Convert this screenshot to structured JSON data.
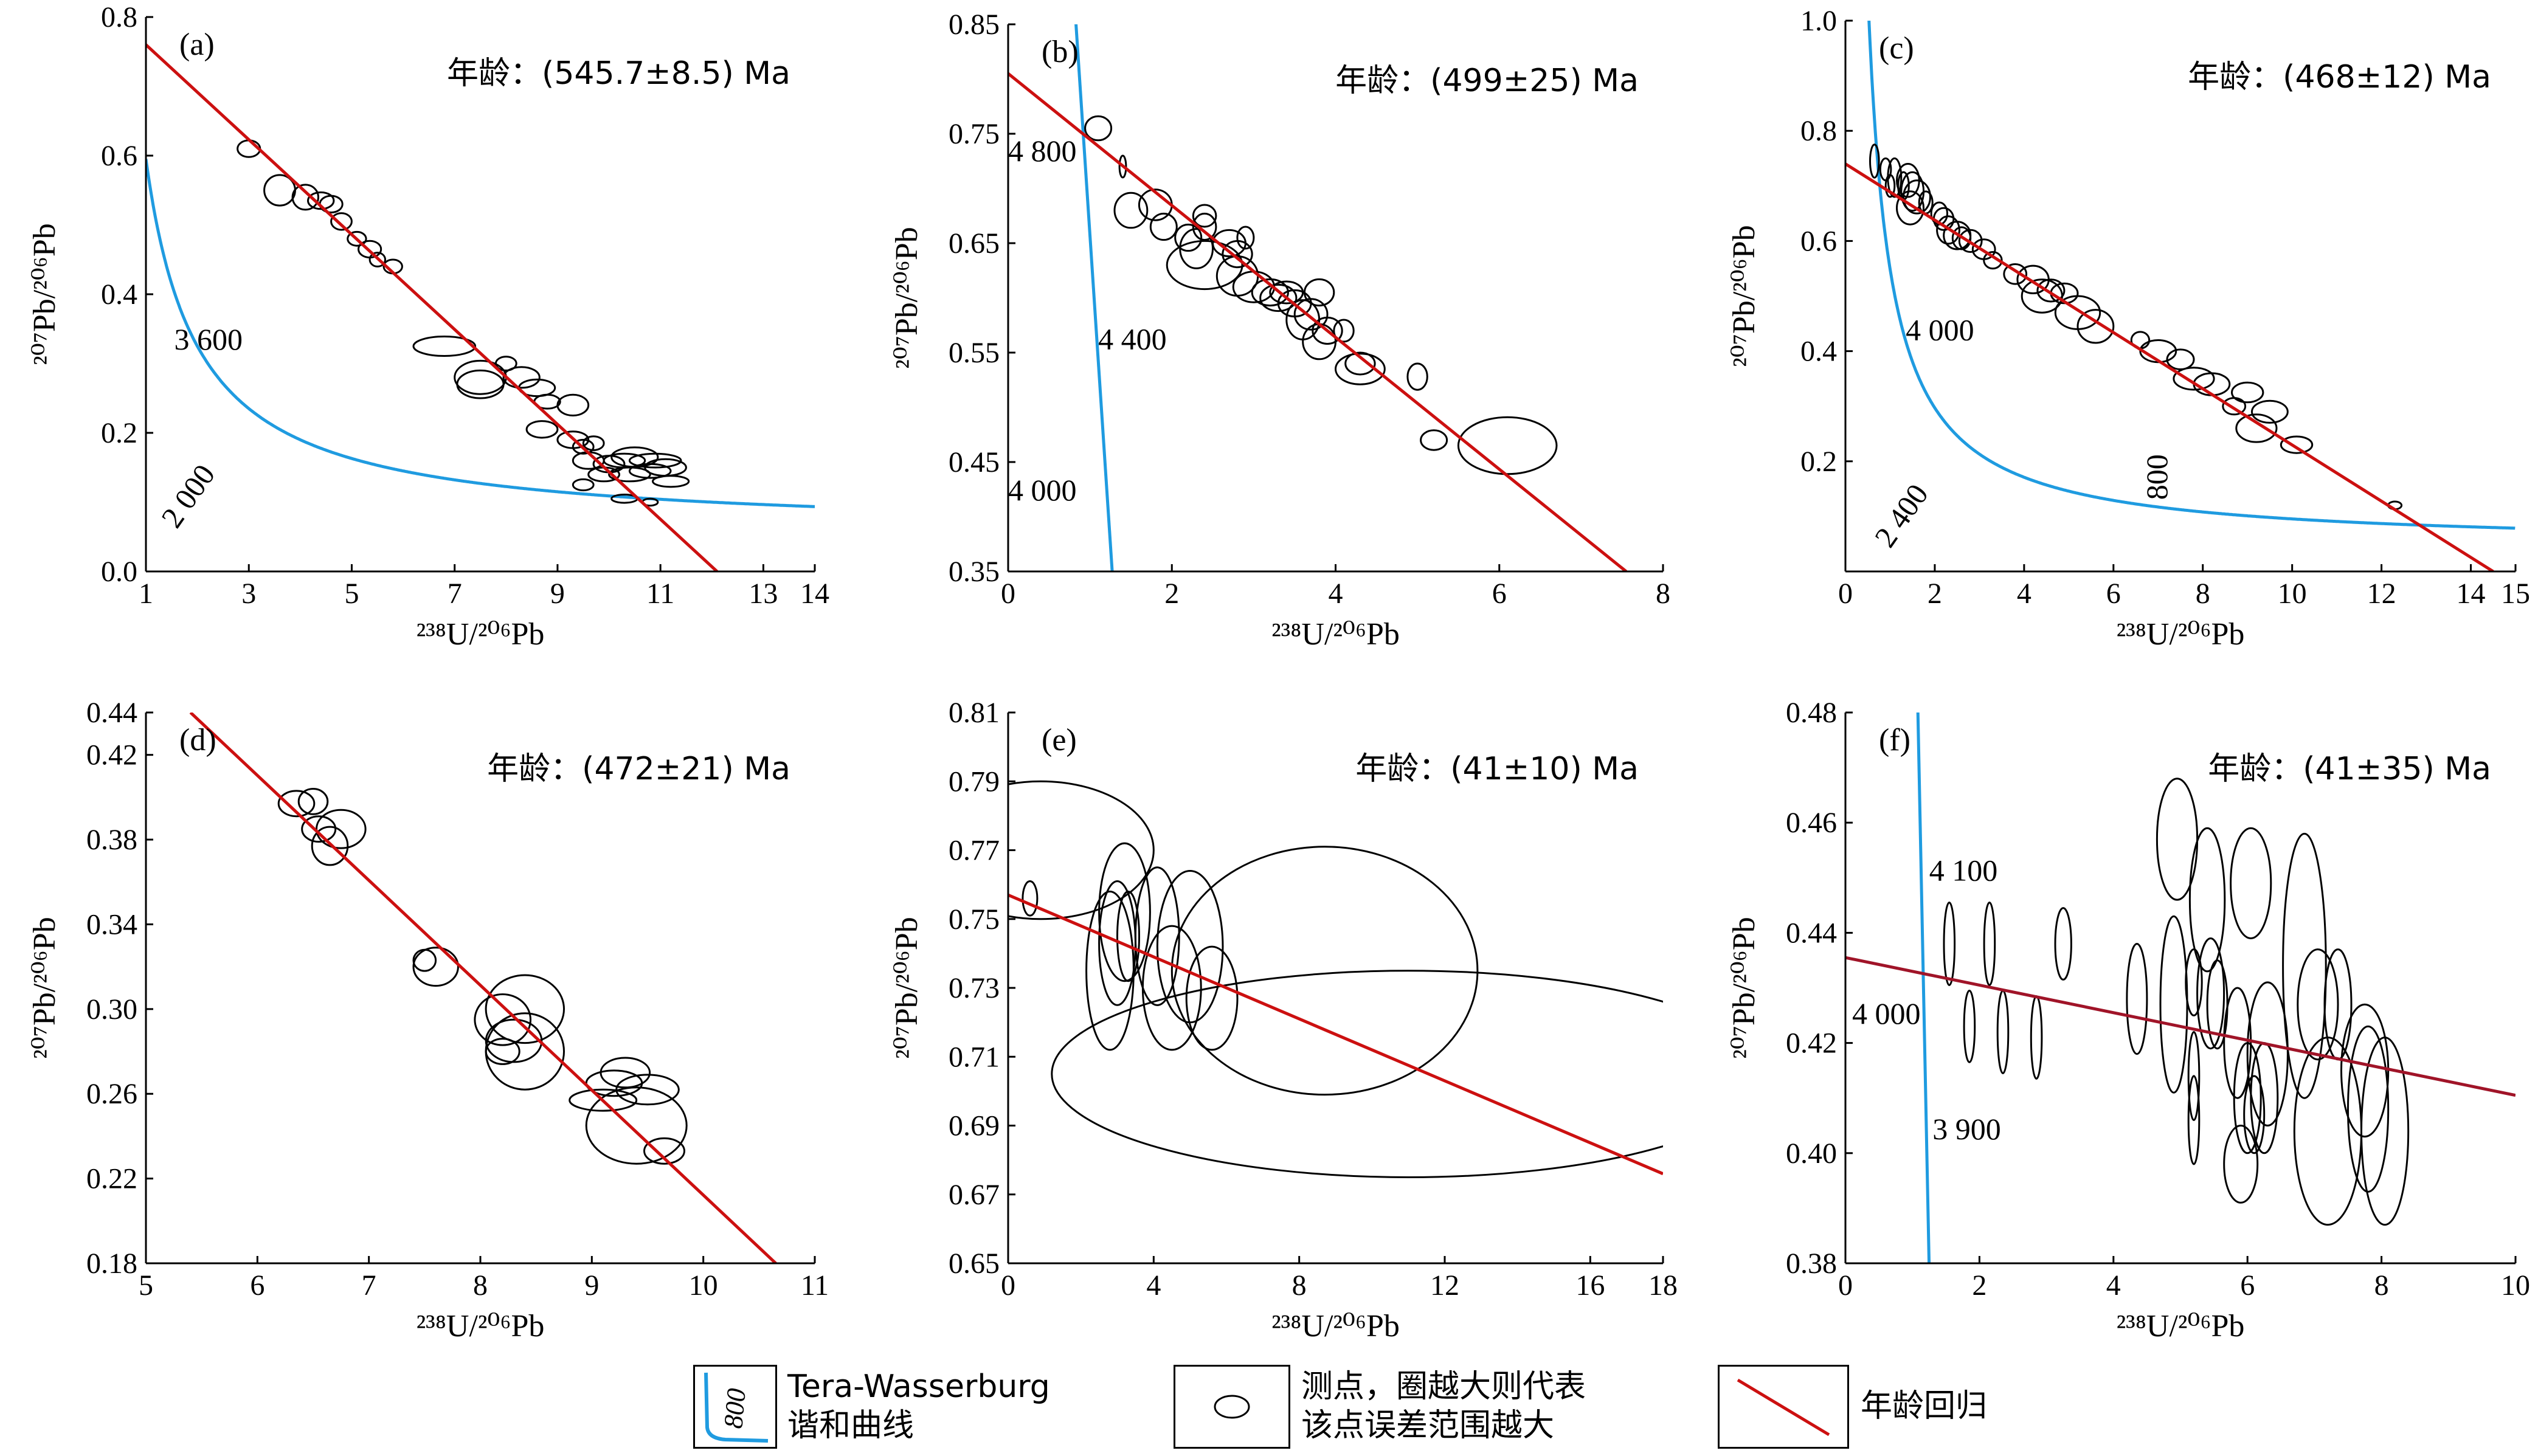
{
  "chart_data": [
    {
      "type": "scatter",
      "panel_label": "(a)",
      "age_label": "年龄：(545.7±8.5) Ma",
      "xlabel": "²³⁸U/²⁰⁶Pb",
      "ylabel": "²⁰⁷Pb/²⁰⁶Pb",
      "xlim": [
        1,
        14
      ],
      "ylim": [
        0,
        0.8
      ],
      "xticks": [
        1,
        3,
        5,
        7,
        9,
        11,
        13,
        14
      ],
      "yticks": [
        0,
        0.2,
        0.4,
        0.6,
        0.8
      ],
      "concordia_labels": [
        {
          "text": "3 600",
          "x": 1.55,
          "y": 0.32
        },
        {
          "text": "2 000",
          "x": 1.6,
          "y": 0.06
        }
      ],
      "regression": [
        [
          1,
          0.76
        ],
        [
          12.1,
          0
        ]
      ],
      "points": [
        [
          3.0,
          0.61,
          0.22,
          0.012
        ],
        [
          3.6,
          0.55,
          0.3,
          0.022
        ],
        [
          4.1,
          0.54,
          0.25,
          0.018
        ],
        [
          4.4,
          0.535,
          0.25,
          0.012
        ],
        [
          4.6,
          0.53,
          0.22,
          0.012
        ],
        [
          4.8,
          0.505,
          0.2,
          0.012
        ],
        [
          5.1,
          0.48,
          0.18,
          0.01
        ],
        [
          5.35,
          0.465,
          0.22,
          0.012
        ],
        [
          5.5,
          0.45,
          0.15,
          0.01
        ],
        [
          5.8,
          0.44,
          0.18,
          0.01
        ],
        [
          6.8,
          0.325,
          0.6,
          0.014
        ],
        [
          7.5,
          0.28,
          0.5,
          0.024
        ],
        [
          7.5,
          0.27,
          0.45,
          0.02
        ],
        [
          8.0,
          0.3,
          0.2,
          0.01
        ],
        [
          8.3,
          0.28,
          0.35,
          0.015
        ],
        [
          8.6,
          0.265,
          0.35,
          0.012
        ],
        [
          8.8,
          0.245,
          0.25,
          0.01
        ],
        [
          9.3,
          0.24,
          0.3,
          0.015
        ],
        [
          8.7,
          0.205,
          0.3,
          0.012
        ],
        [
          9.3,
          0.19,
          0.3,
          0.012
        ],
        [
          9.5,
          0.18,
          0.2,
          0.01
        ],
        [
          9.7,
          0.185,
          0.2,
          0.01
        ],
        [
          9.6,
          0.16,
          0.3,
          0.012
        ],
        [
          10.0,
          0.155,
          0.3,
          0.012
        ],
        [
          10.3,
          0.16,
          0.4,
          0.01
        ],
        [
          10.5,
          0.165,
          0.45,
          0.014
        ],
        [
          10.9,
          0.16,
          0.5,
          0.01
        ],
        [
          11.1,
          0.15,
          0.4,
          0.012
        ],
        [
          10.8,
          0.145,
          0.4,
          0.01
        ],
        [
          10.4,
          0.14,
          0.4,
          0.01
        ],
        [
          9.9,
          0.14,
          0.3,
          0.01
        ],
        [
          11.2,
          0.13,
          0.35,
          0.008
        ],
        [
          9.5,
          0.125,
          0.2,
          0.008
        ],
        [
          10.3,
          0.105,
          0.25,
          0.006
        ],
        [
          10.8,
          0.1,
          0.15,
          0.005
        ]
      ],
      "curve": "hyperbolic"
    },
    {
      "type": "scatter",
      "panel_label": "(b)",
      "age_label": "年龄：(499±25) Ma",
      "xlabel": "²³⁸U/²⁰⁶Pb",
      "ylabel": "²⁰⁷Pb/²⁰⁶Pb",
      "xlim": [
        0,
        8
      ],
      "ylim": [
        0.35,
        0.85
      ],
      "xticks": [
        0,
        2,
        4,
        6,
        8
      ],
      "yticks": [
        0.35,
        0.45,
        0.55,
        0.65,
        0.75,
        0.85
      ],
      "concordia_labels": [
        {
          "text": "4 800",
          "x": 0.0,
          "y": 0.725
        },
        {
          "text": "4 400",
          "x": 1.1,
          "y": 0.553
        },
        {
          "text": "4 000",
          "x": 0.0,
          "y": 0.415
        }
      ],
      "regression": [
        [
          0,
          0.805
        ],
        [
          7.55,
          0.35
        ]
      ],
      "points": [
        [
          1.1,
          0.755,
          0.16,
          0.011
        ],
        [
          1.4,
          0.72,
          0.04,
          0.01
        ],
        [
          1.5,
          0.68,
          0.2,
          0.016
        ],
        [
          1.8,
          0.685,
          0.2,
          0.014
        ],
        [
          1.9,
          0.665,
          0.16,
          0.012
        ],
        [
          2.2,
          0.655,
          0.16,
          0.012
        ],
        [
          2.4,
          0.675,
          0.14,
          0.01
        ],
        [
          2.4,
          0.665,
          0.14,
          0.012
        ],
        [
          2.3,
          0.645,
          0.2,
          0.018
        ],
        [
          2.4,
          0.63,
          0.46,
          0.022
        ],
        [
          2.7,
          0.65,
          0.2,
          0.012
        ],
        [
          2.8,
          0.64,
          0.18,
          0.012
        ],
        [
          2.9,
          0.655,
          0.1,
          0.01
        ],
        [
          2.8,
          0.62,
          0.25,
          0.018
        ],
        [
          3.0,
          0.61,
          0.25,
          0.014
        ],
        [
          3.2,
          0.605,
          0.22,
          0.012
        ],
        [
          3.3,
          0.6,
          0.22,
          0.012
        ],
        [
          3.4,
          0.605,
          0.2,
          0.01
        ],
        [
          3.5,
          0.595,
          0.2,
          0.012
        ],
        [
          3.6,
          0.58,
          0.2,
          0.018
        ],
        [
          3.7,
          0.585,
          0.2,
          0.014
        ],
        [
          3.8,
          0.605,
          0.18,
          0.012
        ],
        [
          3.9,
          0.57,
          0.18,
          0.012
        ],
        [
          3.8,
          0.56,
          0.2,
          0.016
        ],
        [
          4.1,
          0.57,
          0.12,
          0.01
        ],
        [
          4.3,
          0.54,
          0.18,
          0.01
        ],
        [
          4.3,
          0.535,
          0.3,
          0.014
        ],
        [
          5.0,
          0.528,
          0.12,
          0.012
        ],
        [
          5.2,
          0.47,
          0.16,
          0.009
        ],
        [
          6.1,
          0.465,
          0.6,
          0.026
        ]
      ],
      "curve": "steep"
    },
    {
      "type": "scatter",
      "panel_label": "(c)",
      "age_label": "年龄：(468±12) Ma",
      "xlabel": "²³⁸U/²⁰⁶Pb",
      "ylabel": "²⁰⁷Pb/²⁰⁶Pb",
      "xlim": [
        0,
        15
      ],
      "ylim": [
        0,
        1.0
      ],
      "xticks": [
        0,
        2,
        4,
        6,
        8,
        10,
        12,
        14,
        15
      ],
      "yticks": [
        0.2,
        0.4,
        0.6,
        0.8,
        1.0
      ],
      "concordia_labels": [
        {
          "text": "4 000",
          "x": 1.35,
          "y": 0.42
        },
        {
          "text": "2 400",
          "x": 1.0,
          "y": 0.04
        },
        {
          "text": "800",
          "x": 7.2,
          "y": 0.13
        }
      ],
      "regression": [
        [
          0,
          0.74
        ],
        [
          14.5,
          0
        ]
      ],
      "points": [
        [
          0.65,
          0.745,
          0.1,
          0.03
        ],
        [
          0.9,
          0.73,
          0.12,
          0.02
        ],
        [
          1.1,
          0.715,
          0.15,
          0.035
        ],
        [
          1.0,
          0.7,
          0.1,
          0.02
        ],
        [
          1.3,
          0.7,
          0.12,
          0.025
        ],
        [
          1.4,
          0.71,
          0.25,
          0.03
        ],
        [
          1.5,
          0.69,
          0.25,
          0.035
        ],
        [
          1.6,
          0.68,
          0.3,
          0.03
        ],
        [
          1.8,
          0.67,
          0.15,
          0.02
        ],
        [
          1.45,
          0.66,
          0.3,
          0.03
        ],
        [
          2.1,
          0.65,
          0.18,
          0.02
        ],
        [
          2.2,
          0.64,
          0.22,
          0.02
        ],
        [
          2.3,
          0.62,
          0.25,
          0.025
        ],
        [
          2.5,
          0.61,
          0.3,
          0.025
        ],
        [
          2.6,
          0.605,
          0.2,
          0.02
        ],
        [
          2.8,
          0.6,
          0.25,
          0.02
        ],
        [
          3.1,
          0.585,
          0.25,
          0.018
        ],
        [
          3.3,
          0.565,
          0.2,
          0.015
        ],
        [
          3.8,
          0.54,
          0.25,
          0.018
        ],
        [
          4.2,
          0.53,
          0.35,
          0.025
        ],
        [
          4.4,
          0.5,
          0.45,
          0.03
        ],
        [
          4.6,
          0.51,
          0.3,
          0.02
        ],
        [
          4.9,
          0.505,
          0.3,
          0.018
        ],
        [
          5.2,
          0.47,
          0.5,
          0.03
        ],
        [
          5.6,
          0.445,
          0.4,
          0.03
        ],
        [
          6.6,
          0.42,
          0.2,
          0.015
        ],
        [
          7.0,
          0.4,
          0.4,
          0.02
        ],
        [
          7.5,
          0.385,
          0.3,
          0.018
        ],
        [
          7.8,
          0.35,
          0.45,
          0.02
        ],
        [
          8.2,
          0.34,
          0.4,
          0.02
        ],
        [
          9.0,
          0.325,
          0.35,
          0.018
        ],
        [
          8.7,
          0.3,
          0.25,
          0.015
        ],
        [
          9.5,
          0.29,
          0.4,
          0.02
        ],
        [
          9.2,
          0.26,
          0.45,
          0.025
        ],
        [
          10.1,
          0.23,
          0.35,
          0.015
        ],
        [
          12.3,
          0.12,
          0.15,
          0.007
        ]
      ],
      "curve": "hyperbolic"
    },
    {
      "type": "scatter",
      "panel_label": "(d)",
      "age_label": "年龄：(472±21) Ma",
      "xlabel": "²³⁸U/²⁰⁶Pb",
      "ylabel": "²⁰⁷Pb/²⁰⁶Pb",
      "xlim": [
        5,
        11
      ],
      "ylim": [
        0.18,
        0.44
      ],
      "xticks": [
        5,
        6,
        7,
        8,
        9,
        10,
        11
      ],
      "yticks": [
        0.18,
        0.22,
        0.26,
        0.3,
        0.34,
        0.38,
        0.42,
        0.44
      ],
      "concordia_labels": [],
      "regression": [
        [
          5.4,
          0.44
        ],
        [
          10.65,
          0.18
        ]
      ],
      "points": [
        [
          6.35,
          0.397,
          0.16,
          0.006
        ],
        [
          6.5,
          0.398,
          0.13,
          0.006
        ],
        [
          6.55,
          0.385,
          0.15,
          0.006
        ],
        [
          6.75,
          0.385,
          0.22,
          0.009
        ],
        [
          6.65,
          0.377,
          0.16,
          0.009
        ],
        [
          7.5,
          0.323,
          0.1,
          0.005
        ],
        [
          7.6,
          0.32,
          0.2,
          0.009
        ],
        [
          8.2,
          0.295,
          0.25,
          0.012
        ],
        [
          8.4,
          0.3,
          0.35,
          0.016
        ],
        [
          8.3,
          0.285,
          0.25,
          0.01
        ],
        [
          8.2,
          0.28,
          0.15,
          0.006
        ],
        [
          8.4,
          0.28,
          0.35,
          0.018
        ],
        [
          9.3,
          0.27,
          0.22,
          0.007
        ],
        [
          9.2,
          0.265,
          0.25,
          0.006
        ],
        [
          9.5,
          0.262,
          0.28,
          0.007
        ],
        [
          9.1,
          0.257,
          0.3,
          0.005
        ],
        [
          9.4,
          0.245,
          0.45,
          0.018
        ],
        [
          9.65,
          0.233,
          0.18,
          0.006
        ]
      ],
      "curve": "none"
    },
    {
      "type": "scatter",
      "panel_label": "(e)",
      "age_label": "年龄：(41±10) Ma",
      "xlabel": "²³⁸U/²⁰⁶Pb",
      "ylabel": "²⁰⁷Pb/²⁰⁶Pb",
      "xlim": [
        0,
        18
      ],
      "ylim": [
        0.65,
        0.81
      ],
      "xticks": [
        0,
        4,
        8,
        12,
        16,
        18
      ],
      "yticks": [
        0.65,
        0.67,
        0.69,
        0.71,
        0.73,
        0.75,
        0.77,
        0.79,
        0.81
      ],
      "concordia_labels": [],
      "regression": [
        [
          0,
          0.757
        ],
        [
          18,
          0.676
        ]
      ],
      "points": [
        [
          0.9,
          0.77,
          3.1,
          0.02
        ],
        [
          0.6,
          0.756,
          0.2,
          0.005
        ],
        [
          2.8,
          0.735,
          0.65,
          0.023
        ],
        [
          3.0,
          0.743,
          0.5,
          0.018
        ],
        [
          3.2,
          0.752,
          0.7,
          0.02
        ],
        [
          3.3,
          0.745,
          0.3,
          0.013
        ],
        [
          4.1,
          0.745,
          0.6,
          0.02
        ],
        [
          4.5,
          0.73,
          0.8,
          0.018
        ],
        [
          5.0,
          0.742,
          0.9,
          0.022
        ],
        [
          5.6,
          0.727,
          0.7,
          0.015
        ],
        [
          8.7,
          0.735,
          4.2,
          0.036
        ],
        [
          11.0,
          0.705,
          9.8,
          0.03
        ]
      ],
      "curve": "none"
    },
    {
      "type": "scatter",
      "panel_label": "(f)",
      "age_label": "年龄：(41±35) Ma",
      "xlabel": "²³⁸U/²⁰⁶Pb",
      "ylabel": "²⁰⁷Pb/²⁰⁶Pb",
      "xlim": [
        0,
        10
      ],
      "ylim": [
        0.38,
        0.48
      ],
      "xticks": [
        0,
        2,
        4,
        6,
        8,
        10
      ],
      "yticks": [
        0.38,
        0.4,
        0.42,
        0.44,
        0.46,
        0.48
      ],
      "concordia_labels": [
        {
          "text": "4 100",
          "x": 1.25,
          "y": 0.4495
        },
        {
          "text": "4 000",
          "x": 0.1,
          "y": 0.4235
        },
        {
          "text": "3 900",
          "x": 1.3,
          "y": 0.4025
        }
      ],
      "regression": [
        [
          0,
          0.4355
        ],
        [
          10,
          0.4105
        ]
      ],
      "points": [
        [
          1.55,
          0.438,
          0.08,
          0.0075
        ],
        [
          2.15,
          0.438,
          0.08,
          0.0075
        ],
        [
          3.25,
          0.438,
          0.12,
          0.0065
        ],
        [
          1.85,
          0.423,
          0.08,
          0.0065
        ],
        [
          2.35,
          0.422,
          0.08,
          0.0075
        ],
        [
          2.85,
          0.421,
          0.08,
          0.0075
        ],
        [
          4.35,
          0.428,
          0.15,
          0.01
        ],
        [
          4.9,
          0.427,
          0.2,
          0.016
        ],
        [
          4.95,
          0.457,
          0.3,
          0.011
        ],
        [
          5.4,
          0.446,
          0.26,
          0.013
        ],
        [
          6.05,
          0.449,
          0.3,
          0.01
        ],
        [
          5.2,
          0.431,
          0.12,
          0.006
        ],
        [
          5.45,
          0.429,
          0.2,
          0.01
        ],
        [
          5.55,
          0.427,
          0.15,
          0.008
        ],
        [
          5.85,
          0.42,
          0.2,
          0.01
        ],
        [
          6.0,
          0.41,
          0.2,
          0.01
        ],
        [
          6.3,
          0.418,
          0.3,
          0.013
        ],
        [
          6.1,
          0.407,
          0.15,
          0.007
        ],
        [
          6.25,
          0.41,
          0.2,
          0.01
        ],
        [
          5.2,
          0.414,
          0.08,
          0.008
        ],
        [
          5.2,
          0.406,
          0.08,
          0.008
        ],
        [
          5.9,
          0.398,
          0.25,
          0.007
        ],
        [
          6.85,
          0.434,
          0.32,
          0.024
        ],
        [
          7.05,
          0.427,
          0.3,
          0.01
        ],
        [
          7.35,
          0.427,
          0.2,
          0.01
        ],
        [
          7.75,
          0.415,
          0.35,
          0.012
        ],
        [
          7.8,
          0.408,
          0.3,
          0.015
        ],
        [
          8.05,
          0.404,
          0.35,
          0.017
        ],
        [
          7.2,
          0.404,
          0.5,
          0.017
        ]
      ],
      "curve": "vertical"
    }
  ],
  "legend": {
    "concordia_line1": "Tera-Wasserburg",
    "concordia_line2": "谐和曲线",
    "concordia_sample": "800",
    "points_line1": "测点，圈越大则代表",
    "points_line2": "该点误差范围越大",
    "regression": "年龄回归"
  },
  "colors": {
    "concordia": "#1f9be0",
    "regression": "#cc1010",
    "regression_f": "#a01428",
    "axes": "#000000"
  }
}
